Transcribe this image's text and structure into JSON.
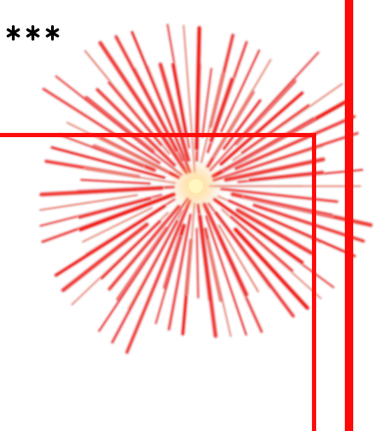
{
  "colors": {
    "frame_red": "#ff0b0b",
    "burst_red": "#f2140c",
    "burst_orange": "#ef5a22",
    "burst_white": "#e8e2e6",
    "core_yellow": "#fff3a6"
  },
  "icons": {
    "star": "asterisk-icon"
  },
  "decoration": {
    "star_count": 3
  }
}
